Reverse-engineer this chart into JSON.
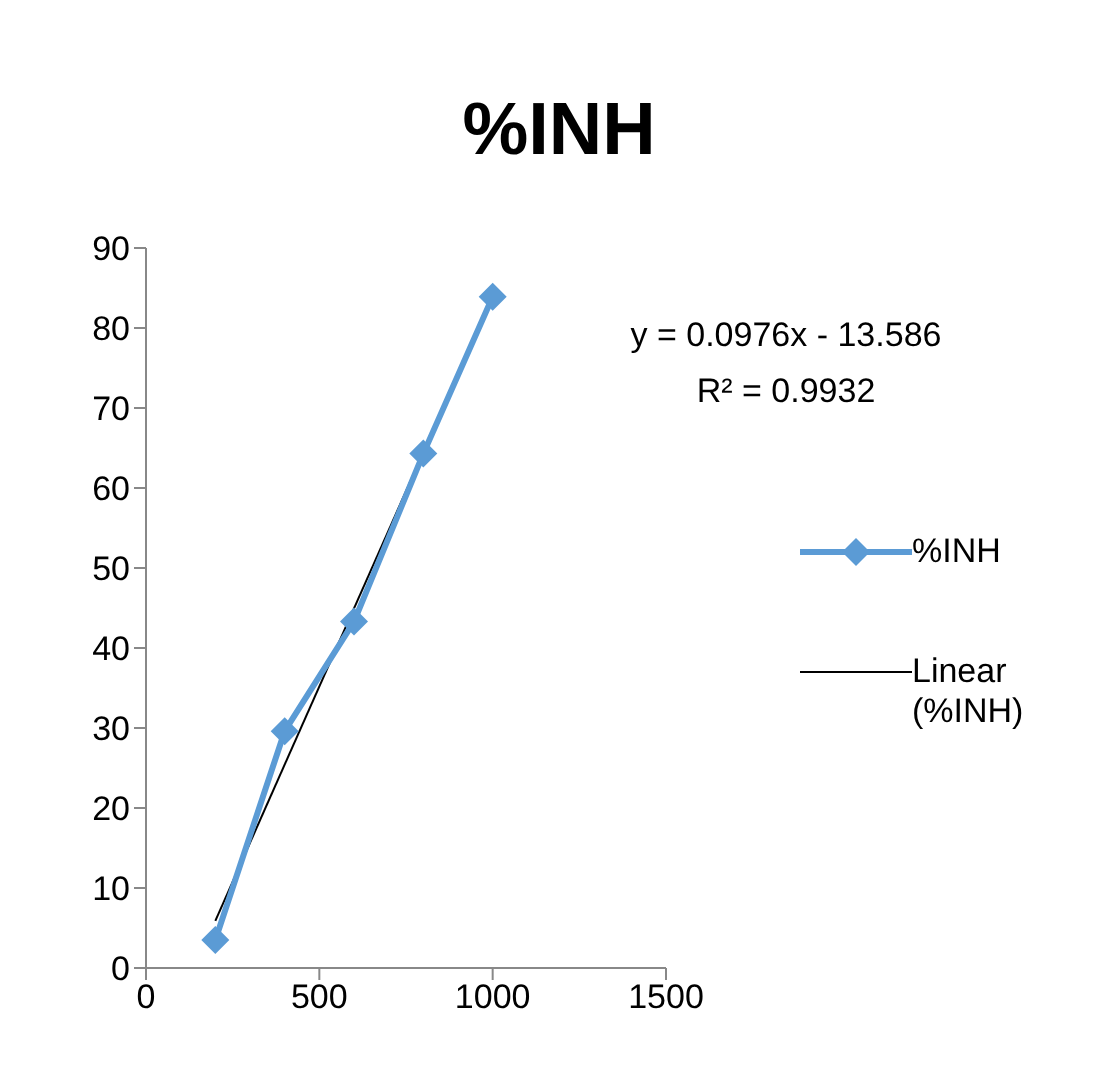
{
  "chart_data": {
    "type": "line",
    "title": "%INH",
    "x": [
      200,
      400,
      600,
      800,
      1000
    ],
    "series": [
      {
        "name": "%INH",
        "color": "#5b9bd5",
        "marker": "diamond",
        "values": [
          3.5,
          29.6,
          43.3,
          64.3,
          83.9
        ]
      },
      {
        "name": "Linear (%INH)",
        "color": "#000000",
        "marker": "none",
        "x": [
          200,
          1000
        ],
        "values": [
          5.9,
          84.0
        ]
      }
    ],
    "xlim": [
      0,
      1500
    ],
    "xticks": [
      0,
      500,
      1000,
      1500
    ],
    "ylim": [
      0,
      90
    ],
    "yticks": [
      0,
      10,
      20,
      30,
      40,
      50,
      60,
      70,
      80,
      90
    ],
    "grid": false,
    "legend": "right",
    "line_style": "solid",
    "annotations": [
      "y = 0.0976x - 13.586",
      "R² = 0.9932"
    ]
  }
}
